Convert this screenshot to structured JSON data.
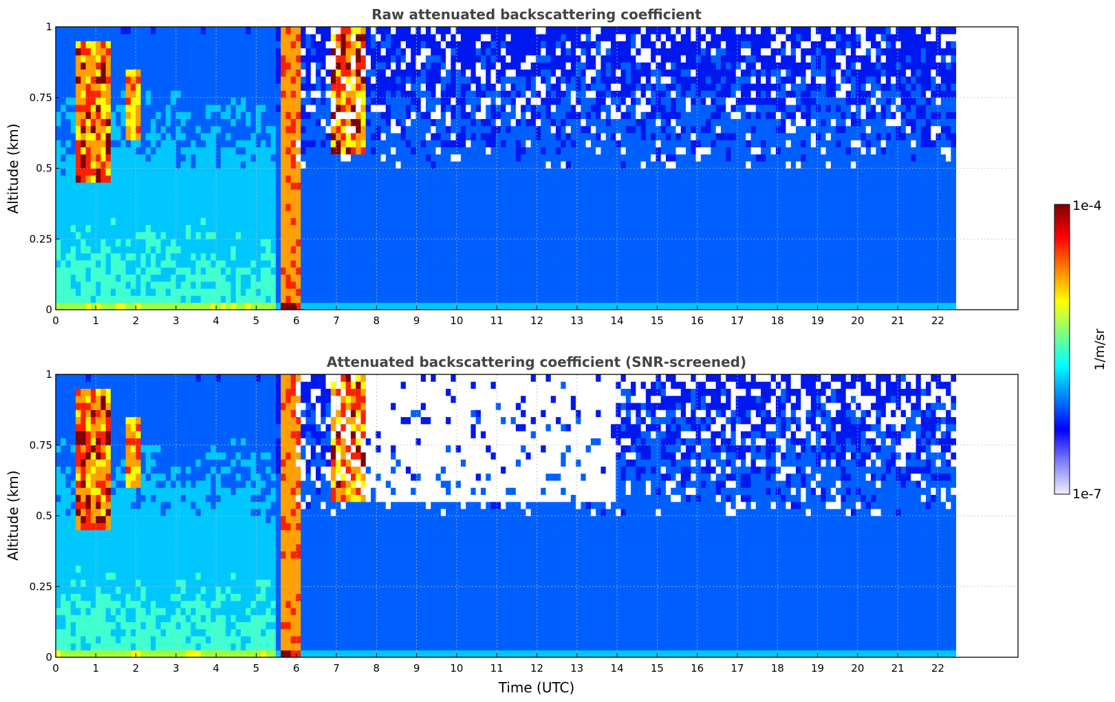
{
  "chart_data": [
    {
      "type": "heatmap",
      "title": "Raw attenuated backscattering coefficient",
      "xlabel": "",
      "ylabel": "Altitude (km)",
      "xlim": [
        0,
        24
      ],
      "ylim": [
        0,
        1
      ],
      "xticks": [
        0,
        1,
        2,
        3,
        4,
        5,
        6,
        7,
        8,
        9,
        10,
        11,
        12,
        13,
        14,
        15,
        16,
        17,
        18,
        19,
        20,
        21,
        22
      ],
      "yticks": [
        0,
        0.25,
        0.5,
        0.75,
        1
      ],
      "ytick_labels": [
        "0",
        "0.25",
        "0.5",
        "0.75",
        "1"
      ],
      "grid": true,
      "data_extent_x": [
        0,
        22.45
      ],
      "features": [
        {
          "x": [
            0.5,
            1.4
          ],
          "y": [
            0.45,
            0.95
          ],
          "level": "high"
        },
        {
          "x": [
            1.7,
            2.1
          ],
          "y": [
            0.6,
            0.85
          ],
          "level": "high"
        },
        {
          "x": [
            5.6,
            6.05
          ],
          "y": [
            0,
            1
          ],
          "level": "high"
        },
        {
          "x": [
            6.8,
            7.7
          ],
          "y": [
            0.55,
            1
          ],
          "level": "high"
        }
      ]
    },
    {
      "type": "heatmap",
      "title": "Attenuated backscattering coefficient (SNR-screened)",
      "xlabel": "Time (UTC)",
      "ylabel": "Altitude (km)",
      "xlim": [
        0,
        24
      ],
      "ylim": [
        0,
        1
      ],
      "xticks": [
        0,
        1,
        2,
        3,
        4,
        5,
        6,
        7,
        8,
        9,
        10,
        11,
        12,
        13,
        14,
        15,
        16,
        17,
        18,
        19,
        20,
        21,
        22
      ],
      "yticks": [
        0,
        0.25,
        0.5,
        0.75,
        1
      ],
      "ytick_labels": [
        "0",
        "0.25",
        "0.5",
        "0.75",
        "1"
      ],
      "grid": true,
      "data_extent_x": [
        0,
        22.45
      ]
    }
  ],
  "colorbar": {
    "label": "1/m/sr",
    "max_label": "1e-4",
    "min_label": "1e-7",
    "colors": [
      "#7f0000",
      "#ff0000",
      "#ff8000",
      "#ffff00",
      "#80ff80",
      "#00ffff",
      "#0080ff",
      "#0000ff",
      "#8080ff",
      "#eeeeff"
    ]
  }
}
